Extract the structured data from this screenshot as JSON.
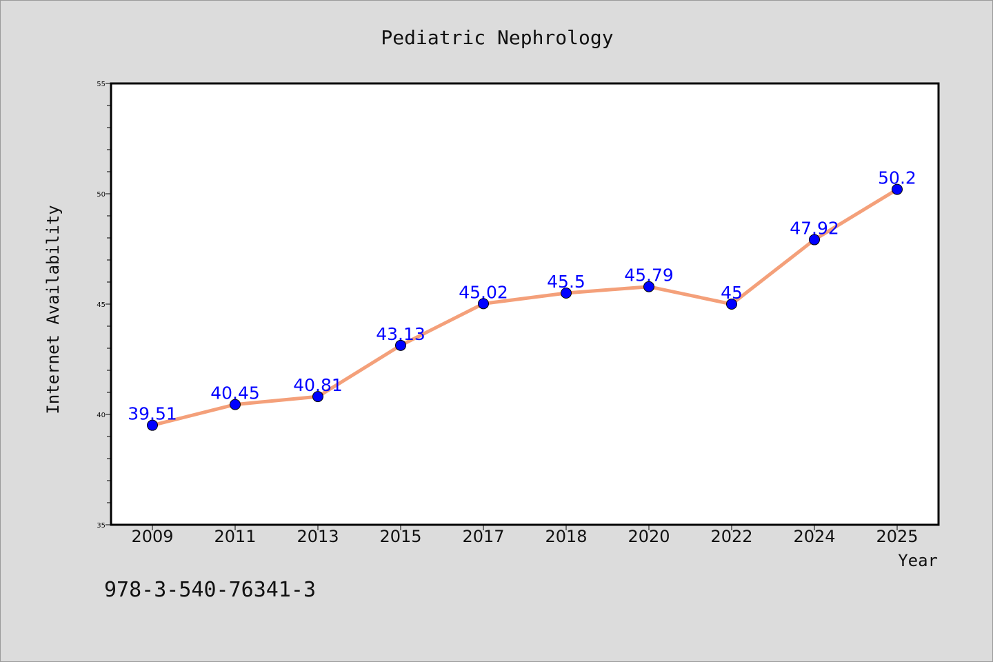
{
  "chart_data": {
    "type": "line",
    "title": "Pediatric Nephrology",
    "xlabel": "Year",
    "ylabel": "Internet Availability",
    "categories": [
      "2009",
      "2011",
      "2013",
      "2015",
      "2017",
      "2018",
      "2020",
      "2022",
      "2024",
      "2025"
    ],
    "values": [
      39.51,
      40.45,
      40.81,
      43.13,
      45.02,
      45.5,
      45.79,
      45,
      47.92,
      50.2
    ],
    "data_labels": [
      "39.51",
      "40.45",
      "40.81",
      "43.13",
      "45.02",
      "45.5",
      "45.79",
      "45",
      "47.92",
      "50.2"
    ],
    "ylim": [
      35,
      55
    ],
    "yticks": [
      35,
      40,
      45,
      50,
      55
    ],
    "grid": false,
    "legend": "none",
    "line_color": "#f4a07a",
    "marker_color": "#0000ff",
    "label_color": "#0000ff"
  },
  "footer": {
    "identifier": "978-3-540-76341-3"
  }
}
